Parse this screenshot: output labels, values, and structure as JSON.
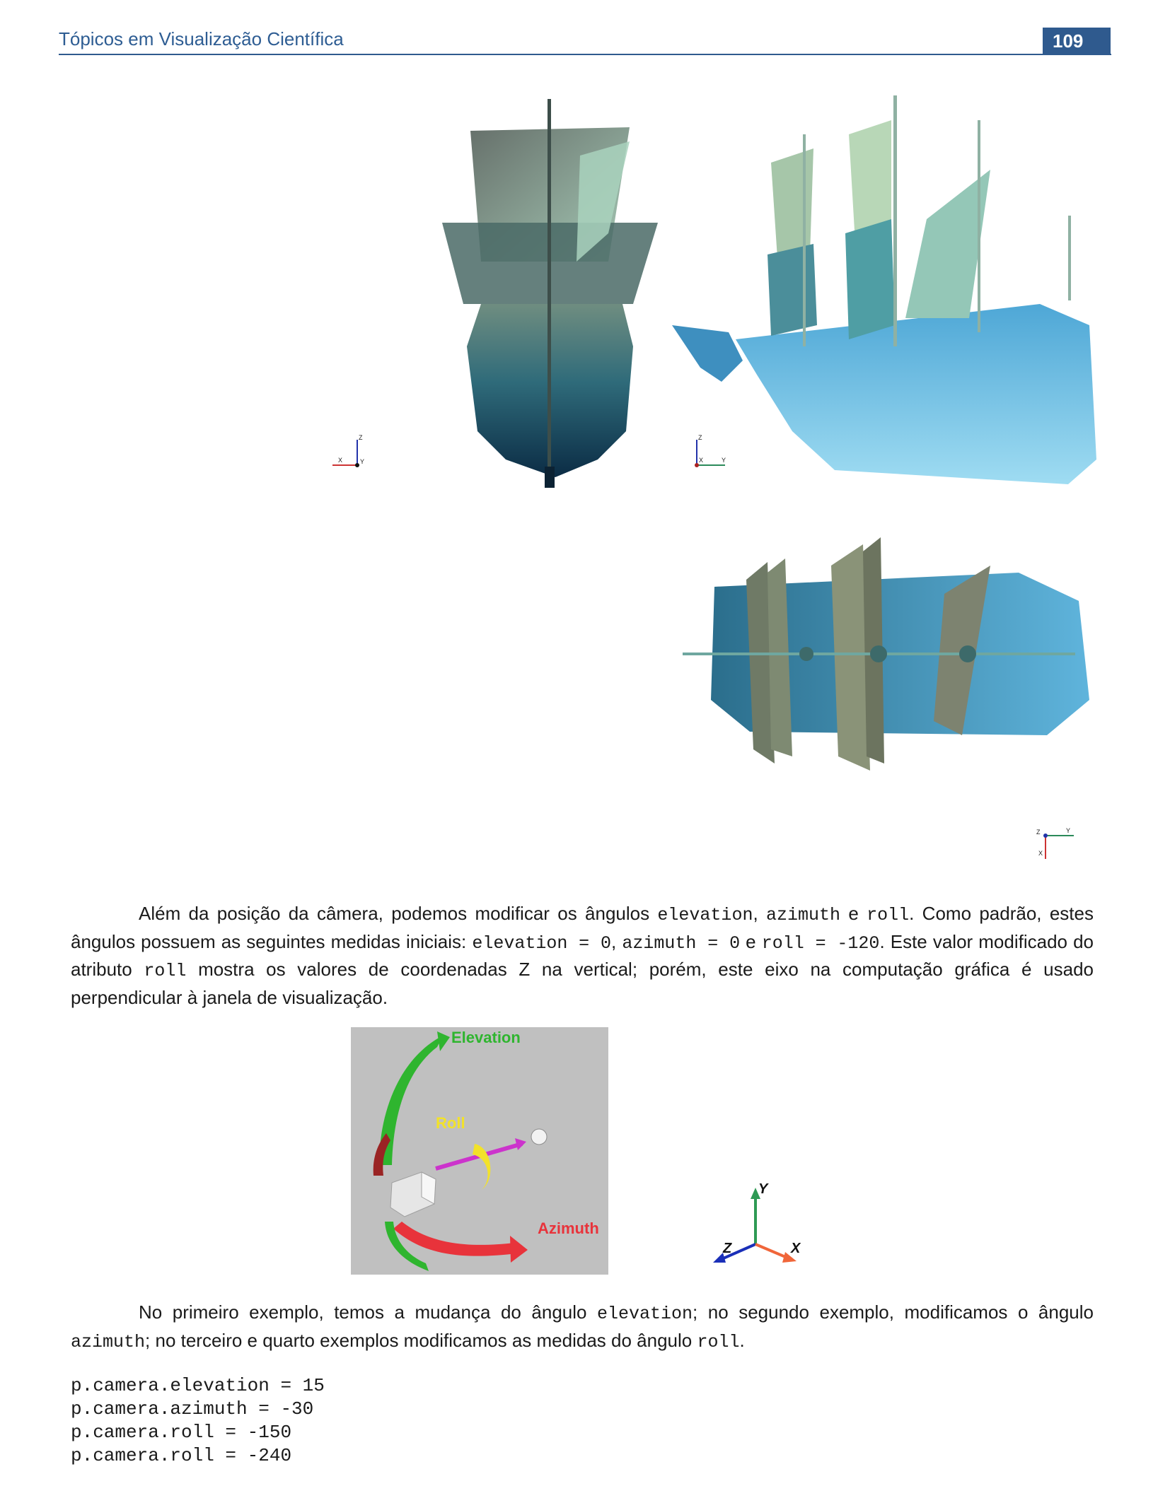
{
  "header": {
    "title": "Tópicos em Visualização Científica",
    "page_number": "109"
  },
  "figure_top": {
    "axes_front": {
      "z": "Z",
      "x": "X",
      "y": "Y"
    },
    "axes_side": {
      "z": "Z",
      "x": "X",
      "y": "Y"
    },
    "axes_top": {
      "z": "Z",
      "y": "Y",
      "x": "X"
    }
  },
  "paragraph1": {
    "s1": "Além da posição da câmera, podemos modificar os ângulos ",
    "c1": "elevation",
    "s2": ", ",
    "c2": "azimuth",
    "s3": " e ",
    "c3": "roll",
    "s4": ". Como padrão, estes ângulos possuem as seguintes medidas iniciais: ",
    "c4": "elevation = 0",
    "s5": ", ",
    "c5": "azimuth = 0",
    "s6": " e ",
    "c6": "roll = -120",
    "s7": ". Este valor modificado do atributo ",
    "c7": "roll",
    "s8": " mostra os valores de coordenadas Z na vertical; porém, este eixo na computação gráfica é usado perpendicular à janela de visualização."
  },
  "camera_diagram": {
    "elevation_label": "Elevation",
    "roll_label": "Roll",
    "azimuth_label": "Azimuth",
    "elevation_color": "#2fb52f",
    "roll_color": "#f2e22a",
    "azimuth_color": "#e8333b",
    "background": "#c0c0c0"
  },
  "axes_diagram": {
    "y": "Y",
    "z": "Z",
    "x": "X"
  },
  "paragraph2": {
    "s1": "No primeiro exemplo, temos a mudança do ângulo ",
    "c1": "elevation",
    "s2": "; no segundo exemplo, modificamos o ângulo ",
    "c2": "azimuth",
    "s3": "; no terceiro e quarto exemplos modificamos as medidas do ângulo ",
    "c3": "roll",
    "s4": "."
  },
  "code": [
    "p.camera.elevation = 15",
    "p.camera.azimuth = -30",
    "p.camera.roll = -150",
    "p.camera.roll = -240"
  ]
}
